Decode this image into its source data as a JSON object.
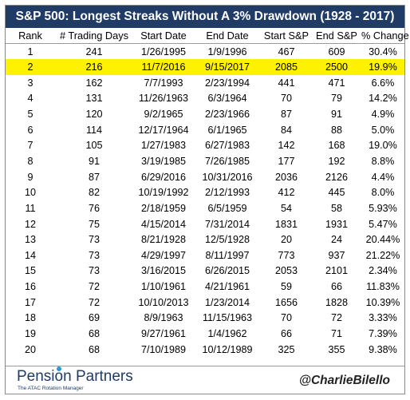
{
  "title": "S&P 500: Longest Streaks Without A 3% Drawdown (1928 - 2017)",
  "columns": [
    "Rank",
    "# Trading Days",
    "Start Date",
    "End Date",
    "Start S&P",
    "End S&P",
    "% Change"
  ],
  "highlight_rank": "2",
  "colors": {
    "title_bg": "#1f3b66",
    "highlight": "#fff200",
    "brand": "#1f3b66",
    "brand_dot": "#2b9ad6"
  },
  "rows": [
    [
      "1",
      "241",
      "1/26/1995",
      "1/9/1996",
      "467",
      "609",
      "30.4%"
    ],
    [
      "2",
      "216",
      "11/7/2016",
      "9/15/2017",
      "2085",
      "2500",
      "19.9%"
    ],
    [
      "3",
      "162",
      "7/7/1993",
      "2/23/1994",
      "441",
      "471",
      "6.6%"
    ],
    [
      "4",
      "131",
      "11/26/1963",
      "6/3/1964",
      "70",
      "79",
      "14.2%"
    ],
    [
      "5",
      "120",
      "9/2/1965",
      "2/23/1966",
      "87",
      "91",
      "4.9%"
    ],
    [
      "6",
      "114",
      "12/17/1964",
      "6/1/1965",
      "84",
      "88",
      "5.0%"
    ],
    [
      "7",
      "105",
      "1/27/1983",
      "6/27/1983",
      "142",
      "168",
      "19.0%"
    ],
    [
      "8",
      "91",
      "3/19/1985",
      "7/26/1985",
      "177",
      "192",
      "8.8%"
    ],
    [
      "9",
      "87",
      "6/29/2016",
      "10/31/2016",
      "2036",
      "2126",
      "4.4%"
    ],
    [
      "10",
      "82",
      "10/19/1992",
      "2/12/1993",
      "412",
      "445",
      "8.0%"
    ],
    [
      "11",
      "76",
      "2/18/1959",
      "6/5/1959",
      "54",
      "58",
      "5.93%"
    ],
    [
      "12",
      "75",
      "4/15/2014",
      "7/31/2014",
      "1831",
      "1931",
      "5.47%"
    ],
    [
      "13",
      "73",
      "8/21/1928",
      "12/5/1928",
      "20",
      "24",
      "20.44%"
    ],
    [
      "14",
      "73",
      "4/29/1997",
      "8/11/1997",
      "773",
      "937",
      "21.22%"
    ],
    [
      "15",
      "73",
      "3/16/2015",
      "6/26/2015",
      "2053",
      "2101",
      "2.34%"
    ],
    [
      "16",
      "72",
      "1/10/1961",
      "4/21/1961",
      "59",
      "66",
      "11.83%"
    ],
    [
      "17",
      "72",
      "10/10/2013",
      "1/23/2014",
      "1656",
      "1828",
      "10.39%"
    ],
    [
      "18",
      "69",
      "8/9/1963",
      "11/15/1963",
      "70",
      "72",
      "3.33%"
    ],
    [
      "19",
      "68",
      "9/27/1961",
      "1/4/1962",
      "66",
      "71",
      "7.39%"
    ],
    [
      "20",
      "68",
      "7/10/1989",
      "10/12/1989",
      "325",
      "355",
      "9.38%"
    ]
  ],
  "footer": {
    "brand_pre": "Pensi",
    "brand_o": "o",
    "brand_post": "n Partners",
    "brand_tagline": "The ATAC Rotation Manager",
    "handle": "@CharlieBilello"
  }
}
